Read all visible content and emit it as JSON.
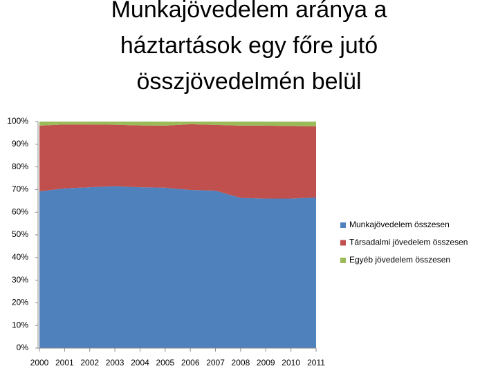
{
  "chart_data": {
    "type": "stacked-area",
    "title": [
      "Munkajövedelem aránya a",
      "háztartások egy főre jutó",
      "összjövedelmén belül"
    ],
    "categories": [
      "2000",
      "2001",
      "2002",
      "2003",
      "2004",
      "2005",
      "2006",
      "2007",
      "2008",
      "2009",
      "2010",
      "2011"
    ],
    "series": [
      {
        "name": "Munkajövedelem összesen",
        "color": "#4f81bd",
        "values": [
          69.2,
          70.5,
          71,
          71.5,
          71,
          70.8,
          69.8,
          69.5,
          66.3,
          66,
          66,
          66.5
        ]
      },
      {
        "name": "Társadalmi jövedelem összesen",
        "color": "#c0504d",
        "values": [
          29,
          28.2,
          27.7,
          27.1,
          27.3,
          27.4,
          29,
          29,
          31.9,
          32.2,
          32,
          31.4
        ]
      },
      {
        "name": "Egyéb jövedelem összesen",
        "color": "#9bbb59",
        "values": [
          1.8,
          1.3,
          1.3,
          1.4,
          1.7,
          1.8,
          1.2,
          1.5,
          1.8,
          1.8,
          2,
          2.1
        ]
      }
    ],
    "ylim": [
      0,
      100
    ],
    "yticks": [
      {
        "value": 0,
        "label": "0%"
      },
      {
        "value": 10,
        "label": "10%"
      },
      {
        "value": 20,
        "label": "20%"
      },
      {
        "value": 30,
        "label": "30%"
      },
      {
        "value": 40,
        "label": "40%"
      },
      {
        "value": 50,
        "label": "50%"
      },
      {
        "value": 60,
        "label": "60%"
      },
      {
        "value": 70,
        "label": "70%"
      },
      {
        "value": 80,
        "label": "80%"
      },
      {
        "value": 90,
        "label": "90%"
      },
      {
        "value": 100,
        "label": "100%"
      }
    ],
    "legend": "right"
  }
}
